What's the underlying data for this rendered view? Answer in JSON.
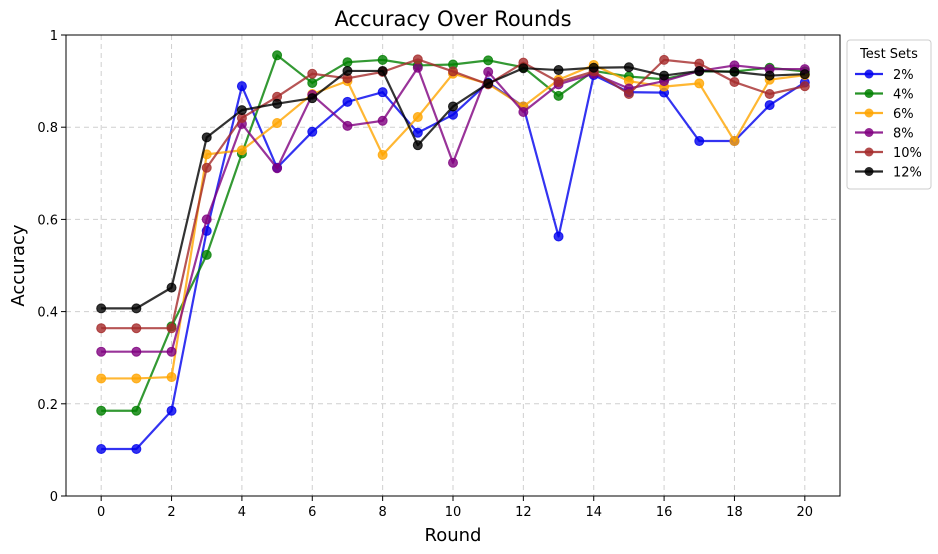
{
  "chart_data": {
    "type": "line",
    "title": "Accuracy Over Rounds",
    "xlabel": "Round",
    "ylabel": "Accuracy",
    "xlim": [
      -1,
      21
    ],
    "ylim": [
      0.0,
      1.0
    ],
    "xticks": [
      0,
      2,
      4,
      6,
      8,
      10,
      12,
      14,
      16,
      18,
      20
    ],
    "yticks": [
      0.0,
      0.2,
      0.4,
      0.6,
      0.8,
      1.0
    ],
    "grid": true,
    "legend_title": "Test Sets",
    "legend_position": "outside-upper-right",
    "x": [
      0,
      1,
      2,
      3,
      4,
      5,
      6,
      7,
      8,
      9,
      10,
      11,
      12,
      13,
      14,
      15,
      16,
      17,
      18,
      19,
      20
    ],
    "series": [
      {
        "name": "2%",
        "color": "#0000ee",
        "values": [
          0.102,
          0.102,
          0.185,
          0.575,
          0.889,
          0.712,
          0.79,
          0.855,
          0.876,
          0.788,
          0.827,
          0.897,
          0.845,
          0.563,
          0.913,
          0.876,
          0.875,
          0.77,
          0.77,
          0.848,
          0.897
        ]
      },
      {
        "name": "4%",
        "color": "#008000",
        "values": [
          0.185,
          0.185,
          0.368,
          0.523,
          0.743,
          0.956,
          0.896,
          0.941,
          0.946,
          0.934,
          0.936,
          0.945,
          0.93,
          0.868,
          0.922,
          0.91,
          0.904,
          0.921,
          0.921,
          0.929,
          0.921
        ]
      },
      {
        "name": "6%",
        "color": "#ffa500",
        "values": [
          0.255,
          0.255,
          0.258,
          0.741,
          0.75,
          0.809,
          0.872,
          0.9,
          0.74,
          0.822,
          0.916,
          0.894,
          0.845,
          0.903,
          0.935,
          0.9,
          0.888,
          0.895,
          0.77,
          0.903,
          0.913
        ]
      },
      {
        "name": "8%",
        "color": "#800080",
        "values": [
          0.313,
          0.313,
          0.313,
          0.6,
          0.807,
          0.711,
          0.87,
          0.803,
          0.814,
          0.929,
          0.723,
          0.92,
          0.833,
          0.893,
          0.916,
          0.884,
          0.9,
          0.922,
          0.934,
          0.926,
          0.926
        ]
      },
      {
        "name": "10%",
        "color": "#a52a2a",
        "values": [
          0.364,
          0.364,
          0.364,
          0.712,
          0.82,
          0.866,
          0.916,
          0.906,
          0.92,
          0.947,
          0.921,
          0.893,
          0.94,
          0.898,
          0.921,
          0.872,
          0.946,
          0.938,
          0.898,
          0.872,
          0.889
        ]
      },
      {
        "name": "12%",
        "color": "#000000",
        "values": [
          0.407,
          0.407,
          0.452,
          0.778,
          0.837,
          0.851,
          0.863,
          0.922,
          0.922,
          0.761,
          0.845,
          0.895,
          0.928,
          0.924,
          0.929,
          0.93,
          0.912,
          0.922,
          0.92,
          0.912,
          0.915
        ]
      }
    ]
  }
}
